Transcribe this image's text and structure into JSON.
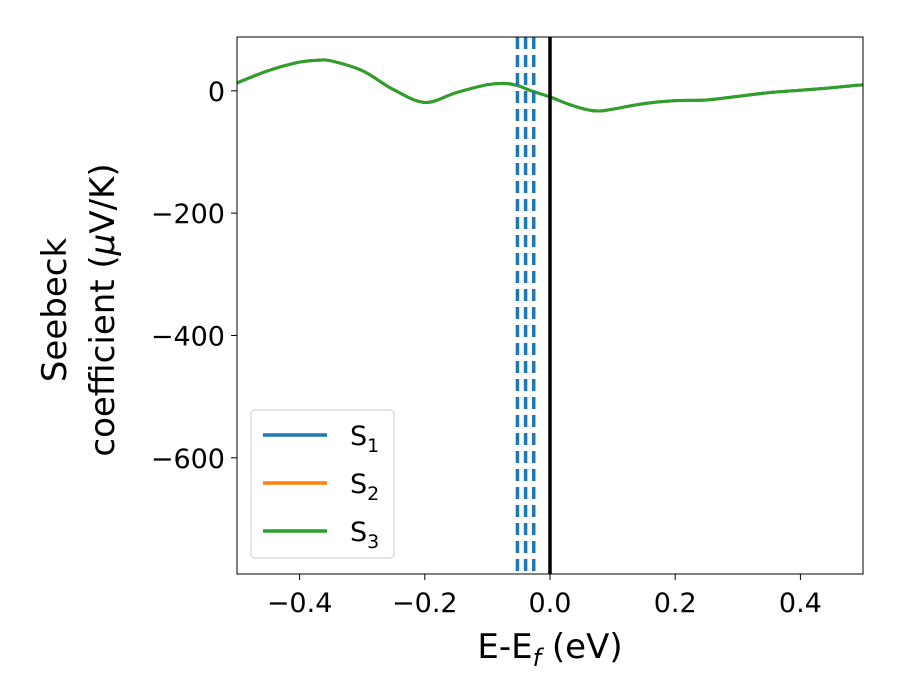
{
  "chart_data": {
    "type": "line",
    "xlabel": {
      "main": "E-E",
      "sub": "f",
      "tail": " (eV)"
    },
    "ylabel": {
      "line1": "Seebeck",
      "line2_pre": "coefficient  (",
      "line2_mu": "μ",
      "line2_post": "V/K)"
    },
    "xlim": [
      -0.5,
      0.5
    ],
    "ylim": [
      -790,
      88
    ],
    "xticks": [
      -0.4,
      -0.2,
      0.0,
      0.2,
      0.4
    ],
    "xtick_labels": [
      "−0.4",
      "−0.2",
      "0.0",
      "0.2",
      "0.4"
    ],
    "yticks": [
      0,
      -200,
      -400,
      -600
    ],
    "ytick_labels": [
      "0",
      "−200",
      "−400",
      "−600"
    ],
    "grid": false,
    "legend_placement": "lower-left",
    "series": [
      {
        "name": "S",
        "subscript": "1",
        "color": "#1f77b4",
        "x": [
          -0.5,
          -0.45,
          -0.4,
          -0.37,
          -0.35,
          -0.3,
          -0.25,
          -0.2,
          -0.15,
          -0.1,
          -0.07,
          -0.05,
          -0.03,
          0.0,
          0.03,
          0.06,
          0.08,
          0.1,
          0.15,
          0.2,
          0.25,
          0.3,
          0.35,
          0.4,
          0.45,
          0.5
        ],
        "y": [
          13,
          33,
          47,
          50,
          49,
          33,
          2,
          -19,
          -3,
          10,
          12,
          8,
          0,
          -10,
          -22,
          -31,
          -33,
          -30,
          -21,
          -16,
          -15,
          -9,
          -3,
          1,
          5,
          10
        ]
      },
      {
        "name": "S",
        "subscript": "2",
        "color": "#ff7f0e",
        "x": [
          -0.5,
          -0.45,
          -0.4,
          -0.37,
          -0.35,
          -0.3,
          -0.25,
          -0.2,
          -0.15,
          -0.1,
          -0.07,
          -0.05,
          -0.03,
          0.0,
          0.03,
          0.06,
          0.08,
          0.1,
          0.15,
          0.2,
          0.25,
          0.3,
          0.35,
          0.4,
          0.45,
          0.5
        ],
        "y": [
          13,
          33,
          47,
          50,
          49,
          33,
          2,
          -19,
          -3,
          10,
          12,
          8,
          0,
          -10,
          -22,
          -31,
          -33,
          -30,
          -21,
          -16,
          -15,
          -9,
          -3,
          1,
          5,
          10
        ]
      },
      {
        "name": "S",
        "subscript": "3",
        "color": "#2ca02c",
        "x": [
          -0.5,
          -0.45,
          -0.4,
          -0.37,
          -0.35,
          -0.3,
          -0.25,
          -0.2,
          -0.15,
          -0.1,
          -0.07,
          -0.05,
          -0.03,
          0.0,
          0.03,
          0.06,
          0.08,
          0.1,
          0.15,
          0.2,
          0.25,
          0.3,
          0.35,
          0.4,
          0.45,
          0.5
        ],
        "y": [
          13,
          33,
          47,
          50,
          49,
          33,
          2,
          -19,
          -3,
          10,
          12,
          8,
          0,
          -10,
          -22,
          -31,
          -33,
          -30,
          -21,
          -16,
          -15,
          -9,
          -3,
          1,
          5,
          10
        ]
      }
    ],
    "vertical_lines": [
      {
        "x": -0.052,
        "style": "dashed",
        "color": "#1f77b4"
      },
      {
        "x": -0.039,
        "style": "dashed",
        "color": "#1f77b4"
      },
      {
        "x": -0.026,
        "style": "dashed",
        "color": "#1f77b4"
      },
      {
        "x": 0.0,
        "style": "solid",
        "color": "#000000"
      }
    ]
  }
}
